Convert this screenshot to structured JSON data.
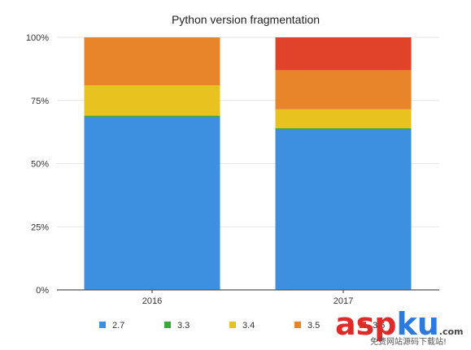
{
  "chart_data": {
    "type": "bar",
    "stacked": true,
    "title": "Python version fragmentation",
    "categories": [
      "2016",
      "2017"
    ],
    "ylim": [
      0,
      100
    ],
    "y_ticks": [
      "0%",
      "25%",
      "50%",
      "75%",
      "100%"
    ],
    "grid": true,
    "legend_position": "bottom",
    "series": [
      {
        "name": "2.7",
        "values": [
          68.5,
          63.5
        ],
        "color": "#3d8fe0"
      },
      {
        "name": "3.3",
        "values": [
          0.5,
          0.5
        ],
        "color": "#3aa83a"
      },
      {
        "name": "3.4",
        "values": [
          12.0,
          7.5
        ],
        "color": "#e8c21e"
      },
      {
        "name": "3.5",
        "values": [
          19.0,
          15.5
        ],
        "color": "#e8842a"
      },
      {
        "name": "3.6",
        "values": [
          0,
          13.0
        ],
        "color": "#e0432a"
      }
    ]
  },
  "watermark": {
    "text": "aspku.com",
    "subtext": "免费网站源码下载站!"
  }
}
